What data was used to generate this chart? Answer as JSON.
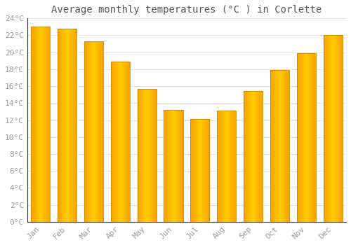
{
  "title": "Average monthly temperatures (°C ) in Corlette",
  "months": [
    "Jan",
    "Feb",
    "Mar",
    "Apr",
    "May",
    "Jun",
    "Jul",
    "Aug",
    "Sep",
    "Oct",
    "Nov",
    "Dec"
  ],
  "values": [
    23.0,
    22.8,
    21.3,
    18.9,
    15.7,
    13.2,
    12.1,
    13.1,
    15.4,
    17.9,
    19.9,
    22.0
  ],
  "bar_color_center": "#FFB900",
  "bar_color_edge": "#F5A000",
  "ylim": [
    0,
    24
  ],
  "ytick_step": 2,
  "background_color": "#FFFFFF",
  "grid_color": "#DDDDDD",
  "title_fontsize": 10,
  "tick_fontsize": 8,
  "tick_label_color": "#999999",
  "title_color": "#555555",
  "spine_color": "#333333"
}
